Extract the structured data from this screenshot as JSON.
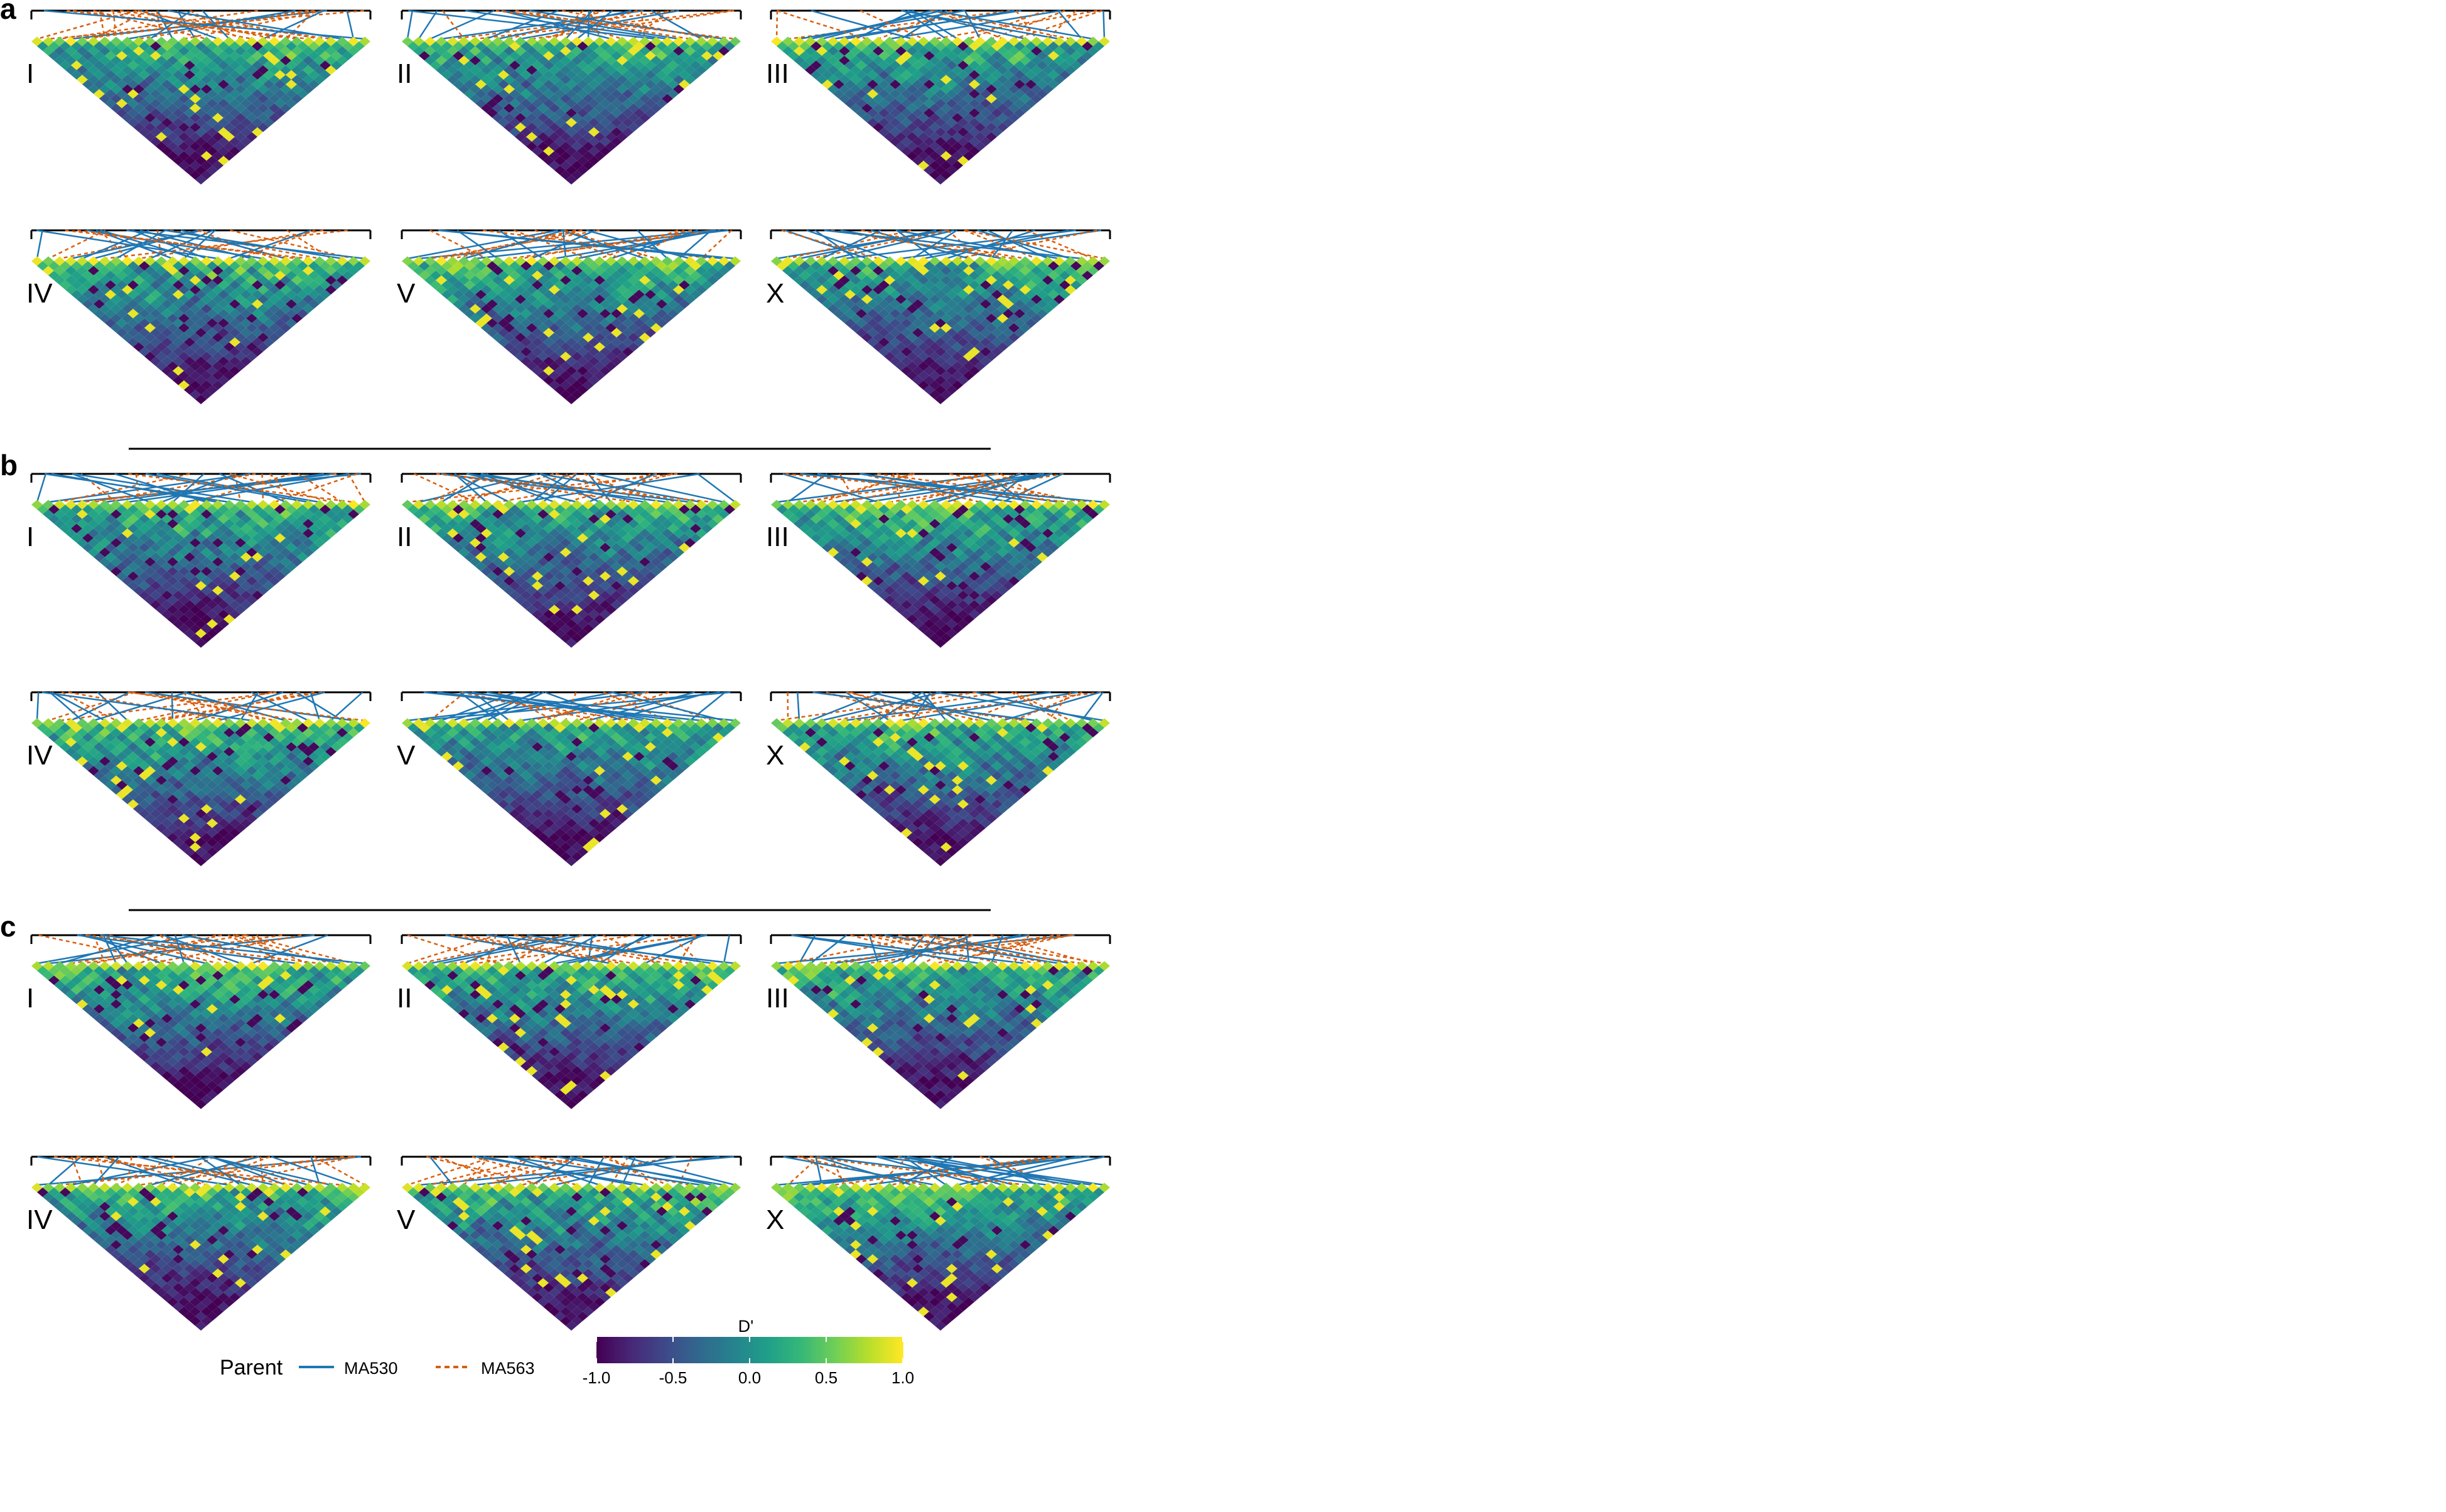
{
  "chart_data": {
    "type": "heatmap",
    "panels": [
      {
        "letter": "a",
        "chromosomes": [
          "I",
          "II",
          "III",
          "IV",
          "V",
          "X"
        ]
      },
      {
        "letter": "b",
        "chromosomes": [
          "I",
          "II",
          "III",
          "IV",
          "V",
          "X"
        ]
      },
      {
        "letter": "c",
        "chromosomes": [
          "I",
          "II",
          "III",
          "IV",
          "V",
          "X"
        ]
      }
    ],
    "legend": {
      "parent_title": "Parent",
      "parents": [
        {
          "name": "MA530",
          "color": "#1f77b4",
          "line": "solid"
        },
        {
          "name": "MA563",
          "color": "#d95f0e",
          "line": "dashed"
        }
      ],
      "colorbar_title": "D'",
      "colorbar_range": [
        -1.0,
        1.0
      ],
      "colorbar_ticks": [
        "-1.0",
        "-0.5",
        "0.0",
        "0.5",
        "1.0"
      ],
      "colormap": "viridis"
    }
  }
}
